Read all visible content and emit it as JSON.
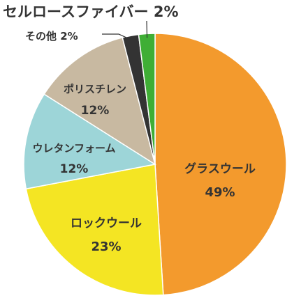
{
  "chart_data": {
    "type": "pie",
    "start_angle_deg": 0,
    "direction": "clockwise",
    "slices": [
      {
        "label": "グラスウール",
        "value": 49,
        "value_label": "49%",
        "color": "#f39a2d",
        "text_color": "#ffffff"
      },
      {
        "label": "ロックウール",
        "value": 23,
        "value_label": "23%",
        "color": "#f4e523",
        "text_color": "#333333"
      },
      {
        "label": "ウレタンフォーム",
        "value": 12,
        "value_label": "12%",
        "color": "#9dd5d8",
        "text_color": "#333333"
      },
      {
        "label": "ポリスチレン",
        "value": 12,
        "value_label": "12%",
        "color": "#c8b9a1",
        "text_color": "#333333"
      },
      {
        "label": "その他",
        "value": 2,
        "value_label": "2%",
        "color": "#333333",
        "text_color": "#333333"
      },
      {
        "label": "セルロースファイバー",
        "value": 2,
        "value_label": "2%",
        "color": "#3fae35",
        "text_color": "#3fae35"
      }
    ]
  }
}
